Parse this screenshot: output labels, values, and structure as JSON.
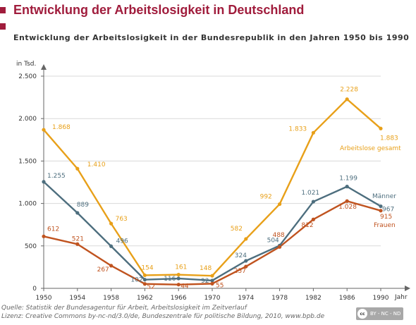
{
  "header": {
    "title": "Entwicklung der Arbeitslosigkeit in Deutschland",
    "subtitle": "Entwicklung der Arbeitslosigkeit in der Bundesrepublik in den Jahren 1950 bis 1990"
  },
  "footer": {
    "source_line": "Quelle: Statistik der Bundesagentur für Arbeit, Arbeitslosigkeit im Zeitverlauf",
    "license_line": "Lizenz: Creative Commons by-nc-nd/3.0/de, Bundeszentrale für politische Bildung, 2010, www.bpb.de",
    "badge_cc": "cc",
    "badge_text": "BY - NC - ND"
  },
  "chart_data": {
    "type": "line",
    "ylabel": "in Tsd.",
    "xlabel": "Jahr",
    "ylim": [
      0,
      2500
    ],
    "yticks": [
      0,
      500,
      1000,
      1500,
      2000,
      2500
    ],
    "ytick_labels": [
      "0",
      "500",
      "1.000",
      "1.500",
      "2.000",
      "2.500"
    ],
    "x": [
      1950,
      1954,
      1958,
      1962,
      1966,
      1970,
      1974,
      1978,
      1982,
      1986,
      1990
    ],
    "x_labels": [
      "1950",
      "1954",
      "1958",
      "1962",
      "1966",
      "1970",
      "1974",
      "1978",
      "1982",
      "1986",
      "1990"
    ],
    "grid": true,
    "series": [
      {
        "name": "Arbeitslose gesamt",
        "color": "#e8a019",
        "values": [
          1868,
          1410,
          763,
          154,
          161,
          148,
          582,
          992,
          1833,
          2228,
          1883
        ],
        "labels": [
          "1.868",
          "1.410",
          "763",
          "154",
          "161",
          "148",
          "582",
          "992",
          "1.833",
          "2.228",
          "1.883"
        ]
      },
      {
        "name": "Männer",
        "color": "#4d6e7e",
        "values": [
          1255,
          889,
          496,
          102,
          116,
          92,
          324,
          504,
          1021,
          1199,
          967
        ],
        "labels": [
          "1.255",
          "889",
          "496",
          "102",
          "116",
          "92",
          "324",
          "504",
          "1.021",
          "1.199",
          "967"
        ]
      },
      {
        "name": "Frauen",
        "color": "#c0531f",
        "values": [
          612,
          521,
          267,
          52,
          44,
          55,
          257,
          488,
          812,
          1028,
          915
        ],
        "labels": [
          "612",
          "521",
          "267",
          "52",
          "44",
          "55",
          "257",
          "488",
          "812",
          "1.028",
          "915"
        ]
      }
    ]
  }
}
